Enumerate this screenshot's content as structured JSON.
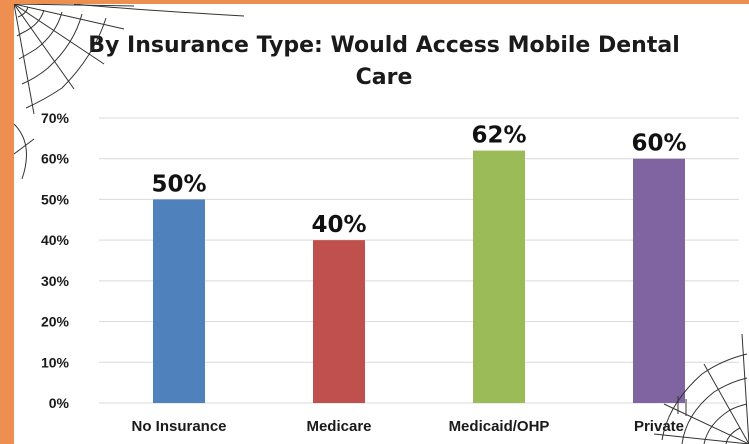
{
  "chart_data": {
    "type": "bar",
    "title_lines": [
      "By Insurance Type: Would Access Mobile Dental",
      "Care"
    ],
    "categories": [
      "No Insurance",
      "Medicare",
      "Medicaid/OHP",
      "Private"
    ],
    "values": [
      0.5,
      0.4,
      0.62,
      0.6
    ],
    "data_labels": [
      "50%",
      "40%",
      "62%",
      "60%"
    ],
    "colors": [
      "#4f81bd",
      "#c0504d",
      "#9bbb59",
      "#8064a2"
    ],
    "ylim": [
      0,
      0.7
    ],
    "yticks": [
      0,
      0.1,
      0.2,
      0.3,
      0.4,
      0.5,
      0.6,
      0.7
    ],
    "ytick_labels": [
      "0%",
      "10%",
      "20%",
      "30%",
      "40%",
      "50%",
      "60%",
      "70%"
    ],
    "grid": true,
    "legend": "none",
    "xlabel": "",
    "ylabel": ""
  },
  "theme": {
    "background": "#ee8f52",
    "panel": "#ffffff",
    "gridline": "#d9d9d9",
    "decoration": "spider-web-icon"
  }
}
